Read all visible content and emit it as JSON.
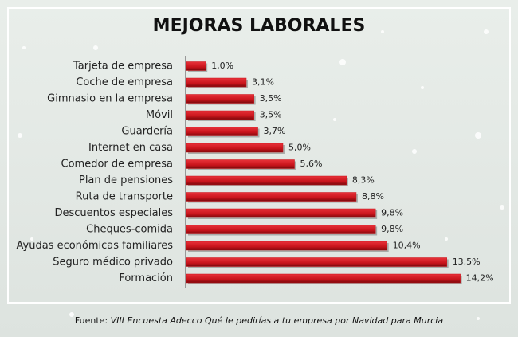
{
  "chart_data": {
    "type": "hbar",
    "title": "MEJORAS LABORALES",
    "categories": [
      "Tarjeta de empresa",
      "Coche de empresa",
      "Gimnasio en la empresa",
      "Móvil",
      "Guardería",
      "Internet en casa",
      "Comedor de empresa",
      "Plan de pensiones",
      "Ruta de transporte",
      "Descuentos especiales",
      "Cheques-comida",
      "Ayudas económicas familiares",
      "Seguro médico privado",
      "Formación"
    ],
    "values": [
      1.0,
      3.1,
      3.5,
      3.5,
      3.7,
      5.0,
      5.6,
      8.3,
      8.8,
      9.8,
      9.8,
      10.4,
      13.5,
      14.2
    ],
    "value_labels": [
      "1,0%",
      "3,1%",
      "3,5%",
      "3,5%",
      "3,7%",
      "5,0%",
      "5,6%",
      "8,3%",
      "8,8%",
      "9,8%",
      "9,8%",
      "10,4%",
      "13,5%",
      "14,2%"
    ],
    "color": "#c8141b",
    "source_prefix": "Fuente:",
    "source": "VIII Encuesta Adecco Qué le pedirías a tu empresa por Navidad para Murcia"
  }
}
